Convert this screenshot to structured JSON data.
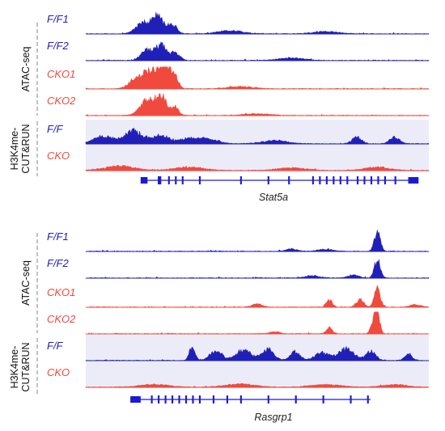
{
  "colors": {
    "wt": "#2020b8",
    "cko": "#f04a3e",
    "cut_bg": "#ececf8",
    "gene": "#1a1ad6",
    "divider": "#999999"
  },
  "panels": [
    {
      "gene_label": "Stat5a",
      "groups": [
        {
          "lines": [
            "ATAC-seq"
          ]
        },
        {
          "lines": [
            "H3K4me-",
            "CUT&RUN"
          ]
        }
      ],
      "tracks": [
        {
          "label": "F/F1",
          "color_key": "wt",
          "peaks": [
            [
              0.17,
              0.55,
              0.03
            ],
            [
              0.21,
              0.8,
              0.02
            ],
            [
              0.25,
              0.45,
              0.02
            ],
            [
              0.42,
              0.15,
              0.05
            ],
            [
              0.7,
              0.1,
              0.05
            ]
          ]
        },
        {
          "label": "F/F2",
          "color_key": "wt",
          "peaks": [
            [
              0.18,
              0.5,
              0.025
            ],
            [
              0.22,
              0.7,
              0.02
            ],
            [
              0.26,
              0.35,
              0.02
            ],
            [
              0.6,
              0.12,
              0.05
            ]
          ]
        },
        {
          "label": "CKO1",
          "color_key": "cko",
          "peaks": [
            [
              0.14,
              0.3,
              0.025
            ],
            [
              0.19,
              0.85,
              0.04
            ],
            [
              0.23,
              1.0,
              0.02
            ],
            [
              0.26,
              0.55,
              0.015
            ],
            [
              0.45,
              0.1,
              0.05
            ]
          ]
        },
        {
          "label": "CKO2",
          "color_key": "cko",
          "peaks": [
            [
              0.18,
              0.7,
              0.03
            ],
            [
              0.22,
              0.95,
              0.02
            ],
            [
              0.26,
              0.4,
              0.015
            ],
            [
              0.5,
              0.08,
              0.05
            ]
          ]
        },
        {
          "label": "F/F",
          "color_key": "wt",
          "peaks": [
            [
              0.05,
              0.35,
              0.04
            ],
            [
              0.14,
              0.6,
              0.04
            ],
            [
              0.22,
              0.4,
              0.03
            ],
            [
              0.3,
              0.25,
              0.04
            ],
            [
              0.36,
              0.2,
              0.04
            ],
            [
              0.55,
              0.15,
              0.05
            ],
            [
              0.79,
              0.3,
              0.02
            ],
            [
              0.9,
              0.3,
              0.02
            ]
          ]
        },
        {
          "label": "CKO",
          "color_key": "cko",
          "peaks": [
            [
              0.1,
              0.2,
              0.06
            ],
            [
              0.3,
              0.15,
              0.06
            ],
            [
              0.6,
              0.12,
              0.06
            ],
            [
              0.85,
              0.15,
              0.05
            ]
          ]
        }
      ],
      "gene_model": {
        "line": [
          0.16,
          0.97
        ],
        "thin": [
          0.21,
          0.96
        ],
        "exons": [
          [
            0.16,
            0.18
          ],
          [
            0.21,
            0.22
          ],
          [
            0.24,
            0.245
          ],
          [
            0.26,
            0.265
          ],
          [
            0.28,
            0.285
          ],
          [
            0.33,
            0.335
          ],
          [
            0.45,
            0.455
          ],
          [
            0.53,
            0.535
          ],
          [
            0.59,
            0.595
          ],
          [
            0.66,
            0.665
          ],
          [
            0.68,
            0.685
          ],
          [
            0.7,
            0.705
          ],
          [
            0.72,
            0.725
          ],
          [
            0.74,
            0.745
          ],
          [
            0.76,
            0.765
          ],
          [
            0.79,
            0.795
          ],
          [
            0.81,
            0.815
          ],
          [
            0.83,
            0.835
          ],
          [
            0.85,
            0.855
          ],
          [
            0.87,
            0.875
          ],
          [
            0.9,
            0.905
          ],
          [
            0.94,
            0.97
          ]
        ]
      }
    },
    {
      "gene_label": "Rasgrp1",
      "groups": [
        {
          "lines": [
            "ATAC-seq"
          ]
        },
        {
          "lines": [
            "H3K4me-",
            "CUT&RUN"
          ]
        }
      ],
      "tracks": [
        {
          "label": "F/F1",
          "color_key": "wt",
          "peaks": [
            [
              0.85,
              0.9,
              0.012
            ],
            [
              0.6,
              0.12,
              0.02
            ],
            [
              0.7,
              0.1,
              0.03
            ]
          ]
        },
        {
          "label": "F/F2",
          "color_key": "wt",
          "peaks": [
            [
              0.85,
              0.85,
              0.012
            ],
            [
              0.78,
              0.15,
              0.02
            ],
            [
              0.66,
              0.1,
              0.03
            ]
          ]
        },
        {
          "label": "CKO1",
          "color_key": "cko",
          "peaks": [
            [
              0.71,
              0.35,
              0.012
            ],
            [
              0.8,
              0.35,
              0.015
            ],
            [
              0.85,
              0.9,
              0.012
            ],
            [
              0.5,
              0.15,
              0.02
            ],
            [
              0.96,
              0.12,
              0.02
            ]
          ]
        },
        {
          "label": "CKO2",
          "color_key": "cko",
          "peaks": [
            [
              0.71,
              0.3,
              0.012
            ],
            [
              0.84,
              0.55,
              0.012
            ],
            [
              0.85,
              1.0,
              0.01
            ],
            [
              0.55,
              0.1,
              0.02
            ]
          ]
        },
        {
          "label": "F/F",
          "color_key": "wt",
          "peaks": [
            [
              0.31,
              0.6,
              0.012
            ],
            [
              0.38,
              0.45,
              0.025
            ],
            [
              0.46,
              0.5,
              0.03
            ],
            [
              0.53,
              0.55,
              0.025
            ],
            [
              0.61,
              0.4,
              0.02
            ],
            [
              0.69,
              0.35,
              0.03
            ],
            [
              0.76,
              0.55,
              0.03
            ],
            [
              0.83,
              0.45,
              0.02
            ],
            [
              0.94,
              0.3,
              0.015
            ]
          ]
        },
        {
          "label": "CKO",
          "color_key": "cko",
          "peaks": [
            [
              0.2,
              0.12,
              0.06
            ],
            [
              0.45,
              0.15,
              0.06
            ],
            [
              0.7,
              0.12,
              0.06
            ],
            [
              0.9,
              0.12,
              0.05
            ]
          ]
        }
      ],
      "gene_model": {
        "line": [
          0.13,
          0.83
        ],
        "thin": [
          0.16,
          0.83
        ],
        "exons": [
          [
            0.13,
            0.16
          ],
          [
            0.19,
            0.195
          ],
          [
            0.21,
            0.215
          ],
          [
            0.23,
            0.235
          ],
          [
            0.25,
            0.255
          ],
          [
            0.27,
            0.275
          ],
          [
            0.29,
            0.295
          ],
          [
            0.31,
            0.315
          ],
          [
            0.33,
            0.335
          ],
          [
            0.37,
            0.375
          ],
          [
            0.41,
            0.415
          ],
          [
            0.45,
            0.455
          ],
          [
            0.53,
            0.535
          ],
          [
            0.61,
            0.615
          ],
          [
            0.69,
            0.695
          ],
          [
            0.77,
            0.775
          ],
          [
            0.82,
            0.825
          ]
        ]
      }
    }
  ]
}
